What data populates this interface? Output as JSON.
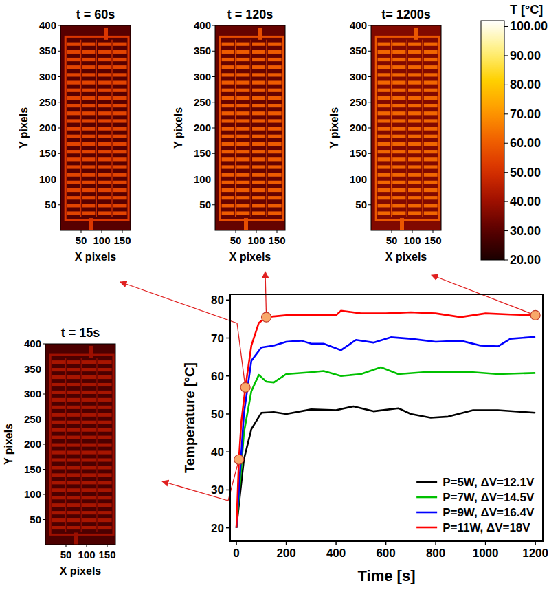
{
  "chart_data": [
    {
      "type": "line",
      "xlabel": "Time [s]",
      "ylabel": "Temperature [°C]",
      "xlim": [
        -25,
        1230
      ],
      "ylim": [
        16.5,
        81.5
      ],
      "xticks": [
        0,
        200,
        400,
        600,
        800,
        1000,
        1200
      ],
      "yticks": [
        20,
        30,
        40,
        50,
        60,
        70,
        80
      ],
      "legend": "lower right",
      "series": [
        {
          "name": "P=5W, ΔV=12.1V",
          "color": "#000000",
          "x": [
            0,
            15,
            30,
            60,
            100,
            150,
            200,
            300,
            400,
            470,
            550,
            650,
            700,
            780,
            850,
            950,
            1050,
            1200
          ],
          "values": [
            20,
            29,
            38,
            46,
            50.3,
            50.5,
            50,
            51.2,
            51,
            52,
            50.7,
            51.5,
            50,
            49,
            49.3,
            51,
            51,
            50.3
          ]
        },
        {
          "name": "P=7W, ΔV=14.5V",
          "color": "#00c000",
          "x": [
            0,
            15,
            30,
            60,
            90,
            120,
            150,
            200,
            300,
            350,
            420,
            500,
            580,
            650,
            750,
            850,
            950,
            1050,
            1200
          ],
          "values": [
            20,
            32,
            45,
            56,
            60.3,
            58.5,
            58.3,
            60.5,
            61,
            61.3,
            60,
            60.5,
            62.3,
            60.5,
            61,
            61,
            61,
            60.5,
            60.8
          ]
        },
        {
          "name": "P=9W, ΔV=16.4V",
          "color": "#0000ff",
          "x": [
            0,
            15,
            30,
            60,
            100,
            150,
            200,
            260,
            300,
            350,
            420,
            480,
            550,
            620,
            700,
            800,
            900,
            980,
            1050,
            1100,
            1200
          ],
          "values": [
            20,
            35,
            50,
            64,
            67.5,
            68,
            69,
            69.3,
            68.5,
            68.5,
            66.8,
            69.5,
            68.8,
            70.2,
            69.8,
            69,
            69.3,
            68,
            67.8,
            69.8,
            70.3
          ]
        },
        {
          "name": "P=11W, ΔV=18V",
          "color": "#ff0000",
          "x": [
            0,
            10,
            20,
            36,
            60,
            90,
            120,
            200,
            300,
            400,
            420,
            500,
            600,
            700,
            800,
            900,
            1000,
            1100,
            1200
          ],
          "values": [
            20,
            38,
            48,
            57,
            68,
            74,
            75.5,
            76,
            76,
            76,
            77.2,
            76.5,
            76.5,
            76.8,
            76.5,
            75.5,
            76.5,
            76.2,
            76
          ]
        }
      ],
      "markers": {
        "x": [
          10,
          36,
          120,
          1200
        ],
        "y": [
          38,
          57,
          75.5,
          76
        ],
        "color": "#f8a86a",
        "marker": "circle"
      }
    },
    {
      "type": "heatmap",
      "title": "t = 60s",
      "xlabel": "X pixels",
      "ylabel": "Y pixels",
      "xlim": [
        0,
        170
      ],
      "ylim": [
        0,
        400
      ],
      "xticks": [
        50,
        100,
        150
      ],
      "yticks": [
        50,
        100,
        150,
        200,
        250,
        300,
        350,
        400
      ],
      "temperature": {
        "heater": 55,
        "frame": 52,
        "ground": 30
      },
      "colorbar": {
        "title": "T [°C]",
        "range": [
          20,
          102
        ],
        "ticks": [
          {
            "value": 20,
            "label": "20.00"
          },
          {
            "value": 30,
            "label": "30.00"
          },
          {
            "value": 40,
            "label": "40.00"
          },
          {
            "value": 50,
            "label": "50.00"
          },
          {
            "value": 60,
            "label": "60.00"
          },
          {
            "value": 70,
            "label": "70.00"
          },
          {
            "value": 80,
            "label": "80.00"
          },
          {
            "value": 90,
            "label": "90.00"
          },
          {
            "value": 100,
            "label": "100.00"
          }
        ]
      }
    },
    {
      "type": "heatmap",
      "title": "t = 120s",
      "xlabel": "X pixels",
      "ylabel": "Y pixels",
      "xlim": [
        0,
        170
      ],
      "ylim": [
        0,
        400
      ],
      "xticks": [
        50,
        100,
        150
      ],
      "yticks": [
        50,
        100,
        150,
        200,
        250,
        300,
        350,
        400
      ],
      "temperature": {
        "heater": 60,
        "frame": 57,
        "ground": 32
      }
    },
    {
      "type": "heatmap",
      "title": "t= 1200s",
      "xlabel": "X pixels",
      "ylabel": "Y pixels",
      "xlim": [
        0,
        170
      ],
      "ylim": [
        0,
        400
      ],
      "xticks": [
        50,
        100,
        150
      ],
      "yticks": [
        50,
        100,
        150,
        200,
        250,
        300,
        350,
        400
      ],
      "temperature": {
        "heater": 62,
        "frame": 59,
        "ground": 36
      }
    },
    {
      "type": "heatmap",
      "title": "t = 15s",
      "xlabel": "X pixels",
      "ylabel": "Y pixels",
      "xlim": [
        0,
        170
      ],
      "ylim": [
        0,
        400
      ],
      "xticks": [
        50,
        100,
        150
      ],
      "yticks": [
        50,
        100,
        150,
        200,
        250,
        300,
        350,
        400
      ],
      "temperature": {
        "heater": 42,
        "frame": 40,
        "ground": 28
      }
    }
  ]
}
